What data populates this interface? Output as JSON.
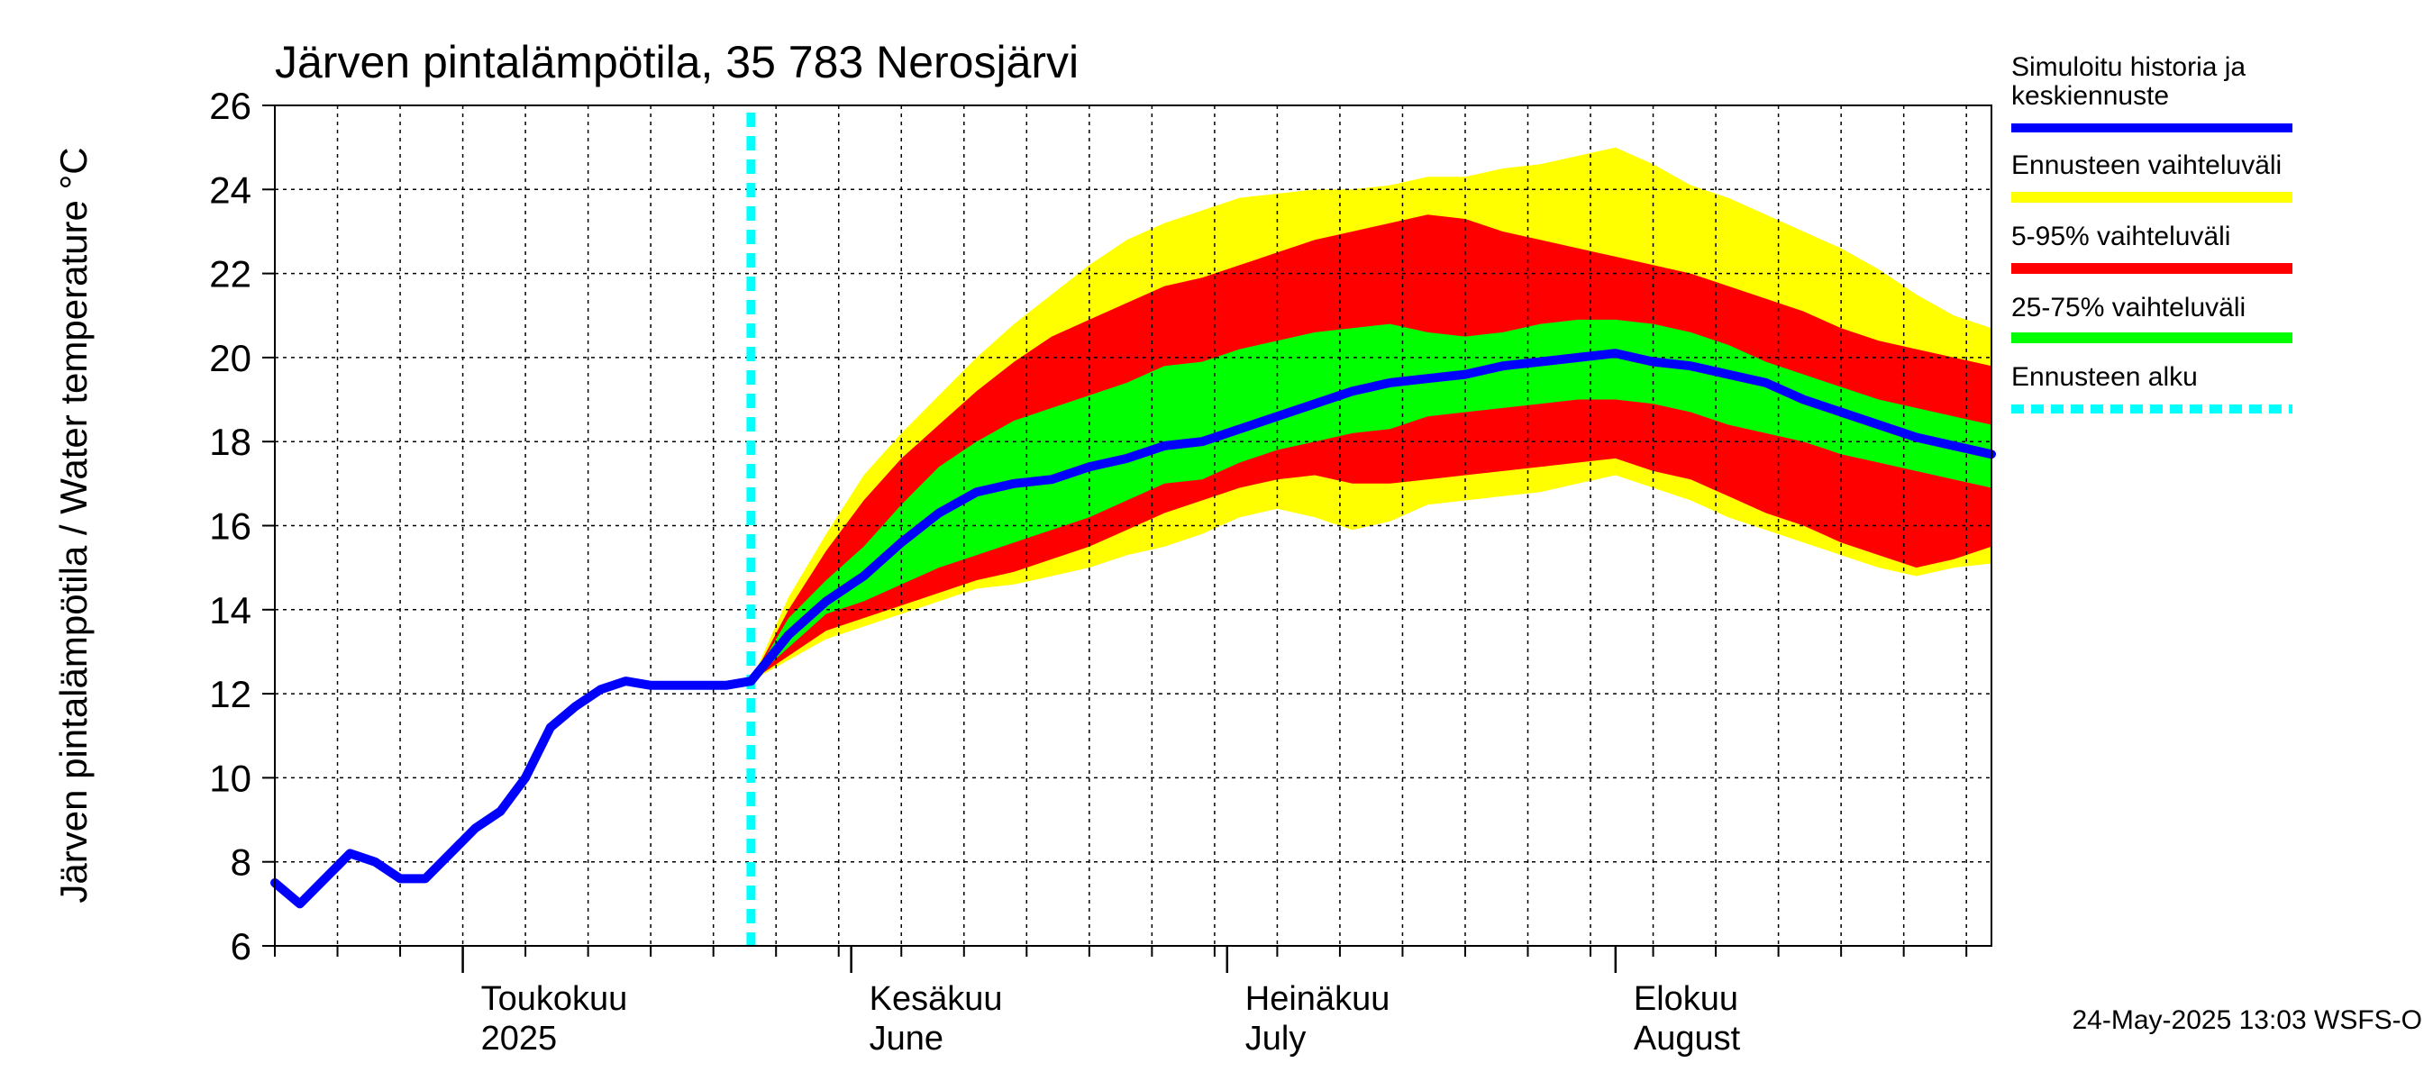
{
  "chart_data": {
    "type": "area",
    "title": "Järven pintalämpötila, 35 783 Nerosjärvi",
    "ylabel": "Järven pintalämpötila / Water temperature °C",
    "xlabel": "",
    "ylim": [
      6,
      26
    ],
    "yticks": [
      6,
      8,
      10,
      12,
      14,
      16,
      18,
      20,
      22,
      24,
      26
    ],
    "xlim": [
      "2025-04-16",
      "2025-08-31"
    ],
    "grid": true,
    "legend_position": "right",
    "month_labels": [
      {
        "date": "2025-05-01",
        "line1": "Toukokuu",
        "line2": "2025"
      },
      {
        "date": "2025-06-01",
        "line1": "Kesäkuu",
        "line2": "June"
      },
      {
        "date": "2025-07-01",
        "line1": "Heinäkuu",
        "line2": "July"
      },
      {
        "date": "2025-08-01",
        "line1": "Elokuu",
        "line2": "August"
      }
    ],
    "forecast_start": "2025-05-24",
    "footer": "24-May-2025 13:03 WSFS-O",
    "legend": [
      {
        "label": "Simuloitu historia ja keskiennuste",
        "color": "#0000ff",
        "style": "line"
      },
      {
        "label": "Ennusteen vaihteluväli",
        "color": "#ffff00",
        "style": "band"
      },
      {
        "label": "5-95% vaihteluväli",
        "color": "#ff0000",
        "style": "band"
      },
      {
        "label": "25-75% vaihteluväli",
        "color": "#00ff00",
        "style": "band"
      },
      {
        "label": "Ennusteen alku",
        "color": "#00ffff",
        "style": "dashed"
      }
    ],
    "colors": {
      "median": "#0000ff",
      "range": "#ffff00",
      "p5_95": "#ff0000",
      "p25_75": "#00ff00",
      "forecast_start": "#00ffff",
      "grid": "#000000"
    },
    "history": {
      "x": [
        "2025-04-16",
        "2025-04-18",
        "2025-04-20",
        "2025-04-22",
        "2025-04-24",
        "2025-04-26",
        "2025-04-28",
        "2025-04-30",
        "2025-05-02",
        "2025-05-04",
        "2025-05-06",
        "2025-05-08",
        "2025-05-10",
        "2025-05-12",
        "2025-05-14",
        "2025-05-16",
        "2025-05-18",
        "2025-05-20",
        "2025-05-22",
        "2025-05-24"
      ],
      "values": [
        7.5,
        7.0,
        7.6,
        8.2,
        8.0,
        7.6,
        7.6,
        8.2,
        8.8,
        9.2,
        10.0,
        11.2,
        11.7,
        12.1,
        12.3,
        12.2,
        12.2,
        12.2,
        12.2,
        12.3
      ]
    },
    "forecast": {
      "x": [
        "2025-05-24",
        "2025-05-27",
        "2025-05-30",
        "2025-06-02",
        "2025-06-05",
        "2025-06-08",
        "2025-06-11",
        "2025-06-14",
        "2025-06-17",
        "2025-06-20",
        "2025-06-23",
        "2025-06-26",
        "2025-06-29",
        "2025-07-02",
        "2025-07-05",
        "2025-07-08",
        "2025-07-11",
        "2025-07-14",
        "2025-07-17",
        "2025-07-20",
        "2025-07-23",
        "2025-07-26",
        "2025-07-29",
        "2025-08-01",
        "2025-08-04",
        "2025-08-07",
        "2025-08-10",
        "2025-08-13",
        "2025-08-16",
        "2025-08-19",
        "2025-08-22",
        "2025-08-25",
        "2025-08-28",
        "2025-08-31"
      ],
      "median": [
        12.3,
        13.4,
        14.2,
        14.8,
        15.6,
        16.3,
        16.8,
        17.0,
        17.1,
        17.4,
        17.6,
        17.9,
        18.0,
        18.3,
        18.6,
        18.9,
        19.2,
        19.4,
        19.5,
        19.6,
        19.8,
        19.9,
        20.0,
        20.1,
        19.9,
        19.8,
        19.6,
        19.4,
        19.0,
        18.7,
        18.4,
        18.1,
        17.9,
        17.7
      ],
      "p25": [
        12.3,
        13.1,
        13.9,
        14.2,
        14.6,
        15.0,
        15.3,
        15.6,
        15.9,
        16.2,
        16.6,
        17.0,
        17.1,
        17.5,
        17.8,
        18.0,
        18.2,
        18.3,
        18.6,
        18.7,
        18.8,
        18.9,
        19.0,
        19.0,
        18.9,
        18.7,
        18.4,
        18.2,
        18.0,
        17.7,
        17.5,
        17.3,
        17.1,
        16.9
      ],
      "p75": [
        12.3,
        13.8,
        14.7,
        15.5,
        16.5,
        17.4,
        18.0,
        18.5,
        18.8,
        19.1,
        19.4,
        19.8,
        19.9,
        20.2,
        20.4,
        20.6,
        20.7,
        20.8,
        20.6,
        20.5,
        20.6,
        20.8,
        20.9,
        20.9,
        20.8,
        20.6,
        20.3,
        19.9,
        19.6,
        19.3,
        19.0,
        18.8,
        18.6,
        18.4
      ],
      "p5": [
        12.3,
        12.9,
        13.5,
        13.8,
        14.1,
        14.4,
        14.7,
        14.9,
        15.2,
        15.5,
        15.9,
        16.3,
        16.6,
        16.9,
        17.1,
        17.2,
        17.0,
        17.0,
        17.1,
        17.2,
        17.3,
        17.4,
        17.5,
        17.6,
        17.3,
        17.1,
        16.7,
        16.3,
        16.0,
        15.6,
        15.3,
        15.0,
        15.2,
        15.5
      ],
      "p95": [
        12.3,
        14.0,
        15.4,
        16.6,
        17.6,
        18.4,
        19.2,
        19.9,
        20.5,
        20.9,
        21.3,
        21.7,
        21.9,
        22.2,
        22.5,
        22.8,
        23.0,
        23.2,
        23.4,
        23.3,
        23.0,
        22.8,
        22.6,
        22.4,
        22.2,
        22.0,
        21.7,
        21.4,
        21.1,
        20.7,
        20.4,
        20.2,
        20.0,
        19.8
      ],
      "min": [
        12.3,
        12.8,
        13.3,
        13.6,
        13.9,
        14.2,
        14.5,
        14.6,
        14.8,
        15.0,
        15.3,
        15.5,
        15.8,
        16.2,
        16.4,
        16.2,
        15.9,
        16.1,
        16.5,
        16.6,
        16.7,
        16.8,
        17.0,
        17.2,
        16.9,
        16.6,
        16.2,
        15.9,
        15.6,
        15.3,
        15.0,
        14.8,
        15.0,
        15.1
      ],
      "max": [
        12.3,
        14.3,
        15.8,
        17.2,
        18.2,
        19.1,
        20.0,
        20.8,
        21.5,
        22.2,
        22.8,
        23.2,
        23.5,
        23.8,
        23.9,
        24.0,
        24.0,
        24.1,
        24.3,
        24.3,
        24.5,
        24.6,
        24.8,
        25.0,
        24.6,
        24.1,
        23.8,
        23.4,
        23.0,
        22.6,
        22.1,
        21.5,
        21.0,
        20.7
      ]
    }
  }
}
